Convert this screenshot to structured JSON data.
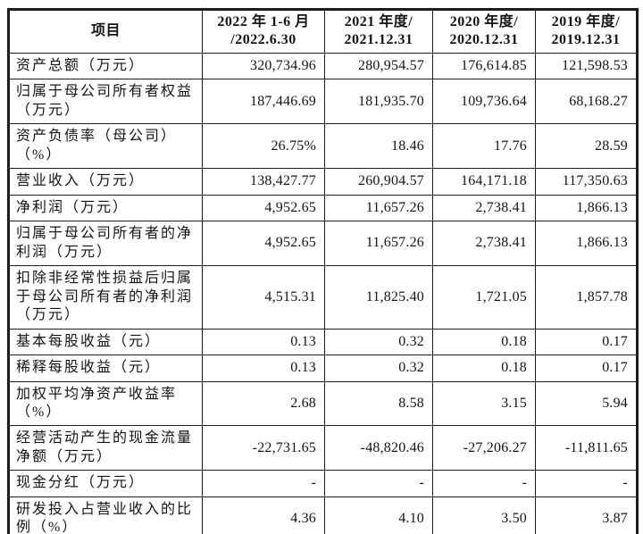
{
  "colors": {
    "border": "#1c1c1c",
    "text": "#141414",
    "background": "#ffffff"
  },
  "table": {
    "header": {
      "item_label": "项目",
      "periods": [
        "2022 年 1-6 月\n/2022.6.30",
        "2021 年度/\n2021.12.31",
        "2020 年度/\n2020.12.31",
        "2019 年度/\n2019.12.31"
      ]
    },
    "rows": [
      {
        "label": "资产总额（万元）",
        "values": [
          "320,734.96",
          "280,954.57",
          "176,614.85",
          "121,598.53"
        ]
      },
      {
        "label": "归属于母公司所有者权益（万元）",
        "values": [
          "187,446.69",
          "181,935.70",
          "109,736.64",
          "68,168.27"
        ]
      },
      {
        "label": "资产负债率（母公司）（%）",
        "values": [
          "26.75%",
          "18.46",
          "17.76",
          "28.59"
        ]
      },
      {
        "label": "营业收入（万元）",
        "values": [
          "138,427.77",
          "260,904.57",
          "164,171.18",
          "117,350.63"
        ]
      },
      {
        "label": "净利润（万元）",
        "values": [
          "4,952.65",
          "11,657.26",
          "2,738.41",
          "1,866.13"
        ]
      },
      {
        "label": "归属于母公司所有者的净利润（万元）",
        "values": [
          "4,952.65",
          "11,657.26",
          "2,738.41",
          "1,866.13"
        ]
      },
      {
        "label": "扣除非经常性损益后归属于母公司所有者的净利润（万元）",
        "values": [
          "4,515.31",
          "11,825.40",
          "1,721.05",
          "1,857.78"
        ]
      },
      {
        "label": "基本每股收益（元）",
        "values": [
          "0.13",
          "0.32",
          "0.18",
          "0.17"
        ]
      },
      {
        "label": "稀释每股收益（元）",
        "values": [
          "0.13",
          "0.32",
          "0.18",
          "0.17"
        ]
      },
      {
        "label": "加权平均净资产收益率（%）",
        "values": [
          "2.68",
          "8.58",
          "3.15",
          "5.94"
        ]
      },
      {
        "label": "经营活动产生的现金流量净额（万元）",
        "values": [
          "-22,731.65",
          "-48,820.46",
          "-27,206.27",
          "-11,811.65"
        ]
      },
      {
        "label": "现金分红（万元）",
        "values": [
          "-",
          "-",
          "-",
          "-"
        ]
      },
      {
        "label": "研发投入占营业收入的比例（%）",
        "values": [
          "4.36",
          "4.10",
          "3.50",
          "3.87"
        ]
      }
    ]
  }
}
